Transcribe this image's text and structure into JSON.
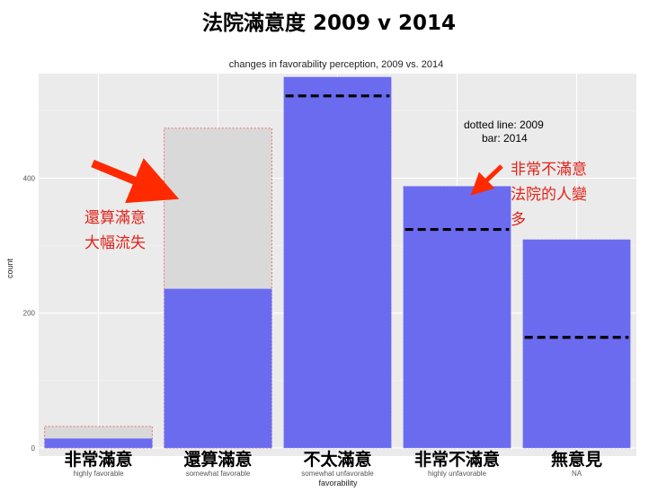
{
  "slide_title": "法院滿意度  2009 v 2014",
  "colors": {
    "bar_2014": "#6b6bf0",
    "bar_2009": "#d9d9d9",
    "panel_bg": "#ebebeb",
    "annotation": "#e2231a",
    "arrow": "#ff2a00"
  },
  "chart_data": {
    "type": "bar",
    "title": "changes in favorability perception, 2009 vs. 2014",
    "xlabel": "favorability",
    "ylabel": "count",
    "ylim": [
      -12,
      555
    ],
    "yticks": [
      0,
      200,
      400
    ],
    "categories": [
      "highly favorable",
      "somewhat favorable",
      "somewhat unfavorable",
      "highly unfavorable",
      "NA"
    ],
    "categories_zh": [
      "非常滿意",
      "還算滿意",
      "不太滿意",
      "非常不滿意",
      "無意見"
    ],
    "series": [
      {
        "name": "bar: 2014",
        "style": "bar",
        "values": [
          14,
          236,
          550,
          388,
          309
        ]
      },
      {
        "name": "dotted line: 2009",
        "style": "dotted",
        "values": [
          32,
          474,
          522,
          324,
          164
        ]
      }
    ],
    "legend_note_lines": [
      "dotted line: 2009",
      "bar: 2014"
    ],
    "annotations": [
      {
        "lines": [
          "還算滿意",
          "大幅流失"
        ]
      },
      {
        "lines": [
          "非常不滿意",
          "法院的人變",
          "多"
        ]
      }
    ],
    "grid": true
  }
}
